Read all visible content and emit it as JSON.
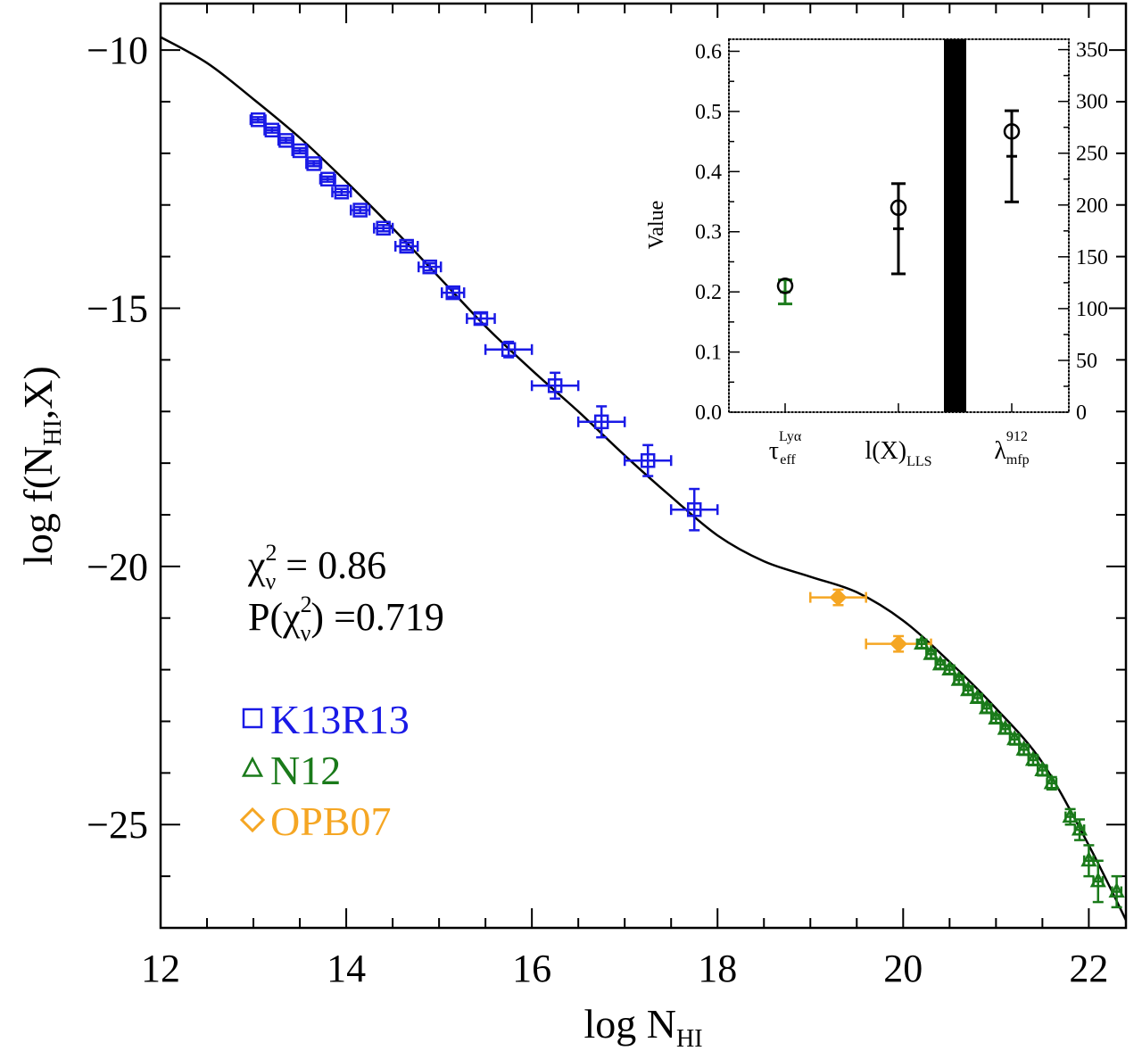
{
  "chart_data": {
    "main": {
      "type": "scatter",
      "xlabel": {
        "base": "log N",
        "sub": "HI"
      },
      "ylabel": {
        "pre": "log f(N",
        "sub": "HI",
        "post": ",X)"
      },
      "xlim": [
        12,
        22.4
      ],
      "ylim": [
        -27.0,
        -9.1
      ],
      "xticks": [
        12,
        14,
        16,
        18,
        20,
        22
      ],
      "xtick_labels": [
        "12",
        "14",
        "16",
        "18",
        "20",
        "22"
      ],
      "yticks": [
        -10,
        -15,
        -20,
        -25
      ],
      "ytick_labels": [
        "−10",
        "−15",
        "−20",
        "−25"
      ],
      "stats": {
        "line1": {
          "pre": "χ",
          "sup": "2",
          "sub": "ν",
          "post": " = 0.86"
        },
        "line2": {
          "pre": "P(χ",
          "sup": "2",
          "sub": "ν",
          "post": ") =0.719"
        }
      },
      "legend": [
        {
          "label": "K13R13",
          "marker": "square",
          "color": "#1a1ae6"
        },
        {
          "label": "N12",
          "marker": "triangle",
          "color": "#1a7a1a"
        },
        {
          "label": "OPB07",
          "marker": "diamond",
          "color": "#f5a623"
        }
      ],
      "model_curve": {
        "name": "model fit",
        "color": "#000000",
        "points": [
          [
            12.0,
            -9.75
          ],
          [
            12.5,
            -10.25
          ],
          [
            13.0,
            -10.95
          ],
          [
            13.5,
            -11.7
          ],
          [
            14.0,
            -12.55
          ],
          [
            14.5,
            -13.45
          ],
          [
            15.0,
            -14.4
          ],
          [
            15.5,
            -15.35
          ],
          [
            16.0,
            -16.2
          ],
          [
            16.5,
            -17.0
          ],
          [
            17.0,
            -17.85
          ],
          [
            17.5,
            -18.65
          ],
          [
            18.0,
            -19.4
          ],
          [
            18.5,
            -19.9
          ],
          [
            19.0,
            -20.2
          ],
          [
            19.5,
            -20.5
          ],
          [
            20.0,
            -21.05
          ],
          [
            20.5,
            -21.85
          ],
          [
            21.0,
            -22.75
          ],
          [
            21.5,
            -23.8
          ],
          [
            22.0,
            -25.4
          ],
          [
            22.4,
            -26.85
          ]
        ]
      },
      "series": [
        {
          "name": "K13R13",
          "color": "#1a1ae6",
          "marker": "square",
          "points": [
            {
              "x": 13.05,
              "y": -11.35,
              "xerr": 0.08,
              "yerr": 0.05
            },
            {
              "x": 13.2,
              "y": -11.55,
              "xerr": 0.08,
              "yerr": 0.05
            },
            {
              "x": 13.35,
              "y": -11.75,
              "xerr": 0.08,
              "yerr": 0.05
            },
            {
              "x": 13.5,
              "y": -11.95,
              "xerr": 0.08,
              "yerr": 0.05
            },
            {
              "x": 13.65,
              "y": -12.2,
              "xerr": 0.08,
              "yerr": 0.05
            },
            {
              "x": 13.8,
              "y": -12.5,
              "xerr": 0.08,
              "yerr": 0.05
            },
            {
              "x": 13.95,
              "y": -12.75,
              "xerr": 0.1,
              "yerr": 0.06
            },
            {
              "x": 14.15,
              "y": -13.1,
              "xerr": 0.1,
              "yerr": 0.06
            },
            {
              "x": 14.4,
              "y": -13.45,
              "xerr": 0.1,
              "yerr": 0.06
            },
            {
              "x": 14.65,
              "y": -13.8,
              "xerr": 0.12,
              "yerr": 0.07
            },
            {
              "x": 14.9,
              "y": -14.2,
              "xerr": 0.12,
              "yerr": 0.07
            },
            {
              "x": 15.15,
              "y": -14.7,
              "xerr": 0.12,
              "yerr": 0.08
            },
            {
              "x": 15.45,
              "y": -15.2,
              "xerr": 0.15,
              "yerr": 0.1
            },
            {
              "x": 15.75,
              "y": -15.8,
              "xerr": 0.25,
              "yerr": 0.15
            },
            {
              "x": 16.25,
              "y": -16.5,
              "xerr": 0.25,
              "yerr": 0.25
            },
            {
              "x": 16.75,
              "y": -17.2,
              "xerr": 0.25,
              "yerr": 0.3
            },
            {
              "x": 17.25,
              "y": -17.95,
              "xerr": 0.25,
              "yerr": 0.3
            },
            {
              "x": 17.75,
              "y": -18.9,
              "xerr": 0.25,
              "yerr": 0.4
            }
          ]
        },
        {
          "name": "OPB07",
          "color": "#f5a623",
          "marker": "diamond",
          "points": [
            {
              "x": 19.3,
              "y": -20.6,
              "xerr": 0.3,
              "yerr": 0.15
            },
            {
              "x": 19.95,
              "y": -21.5,
              "xerr": 0.35,
              "yerr": 0.15
            }
          ]
        },
        {
          "name": "N12",
          "color": "#1a7a1a",
          "marker": "triangle",
          "points": [
            {
              "x": 20.2,
              "y": -21.5,
              "xerr": 0.05,
              "yerr": 0.08
            },
            {
              "x": 20.3,
              "y": -21.7,
              "xerr": 0.05,
              "yerr": 0.08
            },
            {
              "x": 20.4,
              "y": -21.9,
              "xerr": 0.05,
              "yerr": 0.08
            },
            {
              "x": 20.5,
              "y": -22.0,
              "xerr": 0.05,
              "yerr": 0.08
            },
            {
              "x": 20.6,
              "y": -22.2,
              "xerr": 0.05,
              "yerr": 0.08
            },
            {
              "x": 20.7,
              "y": -22.4,
              "xerr": 0.05,
              "yerr": 0.08
            },
            {
              "x": 20.8,
              "y": -22.55,
              "xerr": 0.05,
              "yerr": 0.08
            },
            {
              "x": 20.9,
              "y": -22.75,
              "xerr": 0.05,
              "yerr": 0.08
            },
            {
              "x": 21.0,
              "y": -22.95,
              "xerr": 0.05,
              "yerr": 0.08
            },
            {
              "x": 21.1,
              "y": -23.15,
              "xerr": 0.05,
              "yerr": 0.08
            },
            {
              "x": 21.2,
              "y": -23.35,
              "xerr": 0.05,
              "yerr": 0.1
            },
            {
              "x": 21.3,
              "y": -23.55,
              "xerr": 0.05,
              "yerr": 0.1
            },
            {
              "x": 21.4,
              "y": -23.75,
              "xerr": 0.05,
              "yerr": 0.1
            },
            {
              "x": 21.5,
              "y": -23.95,
              "xerr": 0.05,
              "yerr": 0.1
            },
            {
              "x": 21.6,
              "y": -24.2,
              "xerr": 0.05,
              "yerr": 0.12
            },
            {
              "x": 21.8,
              "y": -24.85,
              "xerr": 0.05,
              "yerr": 0.15
            },
            {
              "x": 21.9,
              "y": -25.1,
              "xerr": 0.05,
              "yerr": 0.2
            },
            {
              "x": 22.0,
              "y": -25.7,
              "xerr": 0.05,
              "yerr": 0.3
            },
            {
              "x": 22.1,
              "y": -26.1,
              "xerr": 0.05,
              "yerr": 0.4
            },
            {
              "x": 22.3,
              "y": -26.3,
              "xerr": 0.05,
              "yerr": 0.3
            }
          ]
        }
      ]
    },
    "inset": {
      "type": "scatter",
      "ylabel": "Value",
      "ylim_left": [
        0,
        0.62
      ],
      "yticks_left": [
        0.0,
        0.1,
        0.2,
        0.3,
        0.4,
        0.5,
        0.6
      ],
      "ytick_labels_left": [
        "0.0",
        "0.1",
        "0.2",
        "0.3",
        "0.4",
        "0.5",
        "0.6"
      ],
      "ylim_right": [
        0,
        360
      ],
      "yticks_right": [
        0,
        50,
        100,
        150,
        200,
        250,
        300,
        350
      ],
      "ytick_labels_right": [
        "0",
        "50",
        "100",
        "150",
        "200",
        "250",
        "300",
        "350"
      ],
      "categories": [
        {
          "base": "τ",
          "sup": "Lyα",
          "sub": "eff"
        },
        {
          "base": "l(X)",
          "sup": "",
          "sub": "LLS"
        },
        {
          "base": "λ",
          "sup": "912",
          "sub": "mfp"
        }
      ],
      "observed_errorbars": [
        {
          "category": 0,
          "axis": "left",
          "y_low": 0.18,
          "y_high": 0.22,
          "color": "#1a7a1a"
        },
        {
          "category": 1,
          "axis": "left",
          "y_low": 0.23,
          "y_high": 0.38,
          "color": "#000000"
        },
        {
          "category": 2,
          "axis": "right",
          "y_low": 203,
          "y_high": 291,
          "color": "#000000"
        }
      ],
      "model_points": [
        {
          "category": 0,
          "axis": "left",
          "y": 0.21
        },
        {
          "category": 1,
          "axis": "left",
          "y": 0.34
        },
        {
          "category": 2,
          "axis": "right",
          "y": 271
        }
      ]
    }
  }
}
